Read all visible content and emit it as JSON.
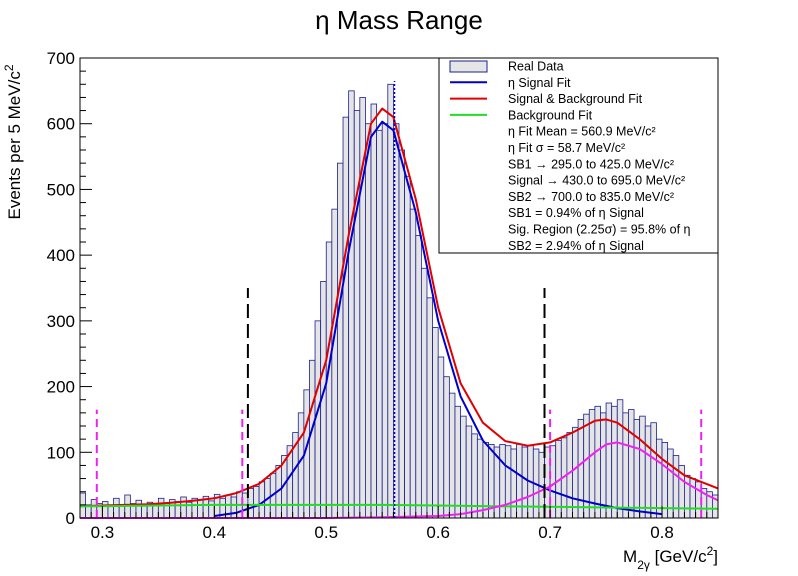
{
  "chart_data": {
    "type": "histogram",
    "title": "η Mass Range",
    "xlabel": "M_2γ [GeV/c^2]",
    "ylabel": "Events per 5 MeV/c^2",
    "xlim": [
      0.28,
      0.85
    ],
    "ylim": [
      0,
      700
    ],
    "x_ticks": [
      0.3,
      0.4,
      0.5,
      0.6,
      0.7,
      0.8
    ],
    "y_ticks": [
      0,
      100,
      200,
      300,
      400,
      500,
      600,
      700
    ],
    "bin_width": 0.005,
    "histogram": {
      "name": "Real Data",
      "bin_low_edges": [
        0.28,
        0.285,
        0.29,
        0.295,
        0.3,
        0.305,
        0.31,
        0.315,
        0.32,
        0.325,
        0.33,
        0.335,
        0.34,
        0.345,
        0.35,
        0.355,
        0.36,
        0.365,
        0.37,
        0.375,
        0.38,
        0.385,
        0.39,
        0.395,
        0.4,
        0.405,
        0.41,
        0.415,
        0.42,
        0.425,
        0.43,
        0.435,
        0.44,
        0.445,
        0.45,
        0.455,
        0.46,
        0.465,
        0.47,
        0.475,
        0.48,
        0.485,
        0.49,
        0.495,
        0.5,
        0.505,
        0.51,
        0.515,
        0.52,
        0.525,
        0.53,
        0.535,
        0.54,
        0.545,
        0.55,
        0.555,
        0.56,
        0.565,
        0.57,
        0.575,
        0.58,
        0.585,
        0.59,
        0.595,
        0.6,
        0.605,
        0.61,
        0.615,
        0.62,
        0.625,
        0.63,
        0.635,
        0.64,
        0.645,
        0.65,
        0.655,
        0.66,
        0.665,
        0.67,
        0.675,
        0.68,
        0.685,
        0.69,
        0.695,
        0.7,
        0.705,
        0.71,
        0.715,
        0.72,
        0.725,
        0.73,
        0.735,
        0.74,
        0.745,
        0.75,
        0.755,
        0.76,
        0.765,
        0.77,
        0.775,
        0.78,
        0.785,
        0.79,
        0.795,
        0.8,
        0.805,
        0.81,
        0.815,
        0.82,
        0.825,
        0.83,
        0.835,
        0.84,
        0.845
      ],
      "counts": [
        38,
        20,
        28,
        22,
        25,
        18,
        30,
        20,
        35,
        22,
        27,
        18,
        24,
        20,
        30,
        22,
        28,
        25,
        32,
        24,
        30,
        28,
        33,
        26,
        36,
        30,
        35,
        32,
        40,
        38,
        45,
        48,
        55,
        60,
        68,
        80,
        95,
        110,
        130,
        160,
        195,
        240,
        300,
        360,
        420,
        470,
        540,
        610,
        650,
        620,
        640,
        600,
        630,
        590,
        600,
        660,
        600,
        560,
        520,
        470,
        430,
        380,
        335,
        290,
        245,
        215,
        190,
        170,
        155,
        140,
        128,
        120,
        115,
        112,
        108,
        112,
        110,
        105,
        112,
        108,
        110,
        105,
        100,
        108,
        110,
        118,
        122,
        130,
        138,
        150,
        158,
        165,
        170,
        160,
        175,
        170,
        180,
        160,
        165,
        150,
        155,
        140,
        145,
        120,
        115,
        105,
        95,
        80,
        65,
        60,
        55,
        45,
        40,
        35
      ],
      "fill": "#e5e5e5",
      "edge": "#1a1f8f"
    },
    "series": [
      {
        "name": "η Signal Fit",
        "color": "#0000cc",
        "x": [
          0.4,
          0.42,
          0.44,
          0.46,
          0.48,
          0.5,
          0.52,
          0.54,
          0.55,
          0.56,
          0.58,
          0.6,
          0.62,
          0.64,
          0.66,
          0.68,
          0.7,
          0.72,
          0.74,
          0.76,
          0.78,
          0.8
        ],
        "y": [
          3,
          8,
          20,
          45,
          95,
          205,
          405,
          580,
          603,
          590,
          465,
          300,
          185,
          118,
          80,
          57,
          42,
          30,
          22,
          15,
          10,
          6
        ]
      },
      {
        "name": "Signal & Background Fit",
        "color": "#e00000",
        "x": [
          0.28,
          0.3,
          0.32,
          0.34,
          0.36,
          0.38,
          0.4,
          0.42,
          0.44,
          0.46,
          0.48,
          0.5,
          0.52,
          0.54,
          0.55,
          0.56,
          0.58,
          0.6,
          0.62,
          0.64,
          0.66,
          0.68,
          0.7,
          0.72,
          0.74,
          0.75,
          0.76,
          0.78,
          0.8,
          0.82,
          0.85
        ],
        "y": [
          18,
          19,
          20,
          21,
          23,
          26,
          30,
          38,
          52,
          80,
          130,
          240,
          430,
          600,
          623,
          610,
          485,
          320,
          205,
          145,
          117,
          110,
          115,
          130,
          148,
          150,
          145,
          120,
          90,
          65,
          45
        ]
      },
      {
        "name": "Background Fit",
        "color": "#22dd22",
        "x": [
          0.28,
          0.3,
          0.35,
          0.4,
          0.45,
          0.5,
          0.55,
          0.6,
          0.65,
          0.7,
          0.75,
          0.8,
          0.85
        ],
        "y": [
          18,
          18,
          19,
          20,
          20,
          20,
          20,
          19,
          18,
          17,
          16,
          15,
          14
        ]
      },
      {
        "name": "",
        "color": "#ee22ee",
        "x": [
          0.28,
          0.4,
          0.5,
          0.55,
          0.6,
          0.62,
          0.64,
          0.66,
          0.68,
          0.7,
          0.72,
          0.74,
          0.75,
          0.76,
          0.78,
          0.8,
          0.82,
          0.84,
          0.85
        ],
        "y": [
          0,
          0,
          0,
          1,
          3,
          6,
          12,
          20,
          32,
          48,
          72,
          100,
          112,
          115,
          105,
          82,
          55,
          35,
          27
        ]
      }
    ],
    "reference_lines": [
      {
        "x": 0.43,
        "ymax": 350,
        "color": "#000000",
        "style": "long-dash"
      },
      {
        "x": 0.695,
        "ymax": 350,
        "color": "#000000",
        "style": "long-dash"
      },
      {
        "x": 0.295,
        "ymax": 165,
        "color": "#ee22ee",
        "style": "dash"
      },
      {
        "x": 0.425,
        "ymax": 165,
        "color": "#ee22ee",
        "style": "dash"
      },
      {
        "x": 0.7,
        "ymax": 165,
        "color": "#ee22ee",
        "style": "dash"
      },
      {
        "x": 0.835,
        "ymax": 165,
        "color": "#ee22ee",
        "style": "dash"
      },
      {
        "x": 0.561,
        "ymax": 665,
        "color": "#0000cc",
        "style": "dotted"
      }
    ],
    "legend": {
      "placement": "top-right",
      "entries": [
        "Real Data",
        "η Signal Fit",
        "Signal & Background Fit",
        "Background Fit"
      ],
      "notes": [
        "η Fit Mean = 560.9 MeV/c²",
        "η Fit σ = 58.7 MeV/c²",
        "SB1 → 295.0 to 425.0 MeV/c²",
        "Signal → 430.0 to 695.0 MeV/c²",
        "SB2 → 700.0 to 835.0 MeV/c²",
        "SB1 = 0.94% of η Signal",
        "Sig. Region (2.25σ) = 95.8% of η",
        "SB2 = 2.94% of η Signal"
      ]
    },
    "grid": false
  }
}
